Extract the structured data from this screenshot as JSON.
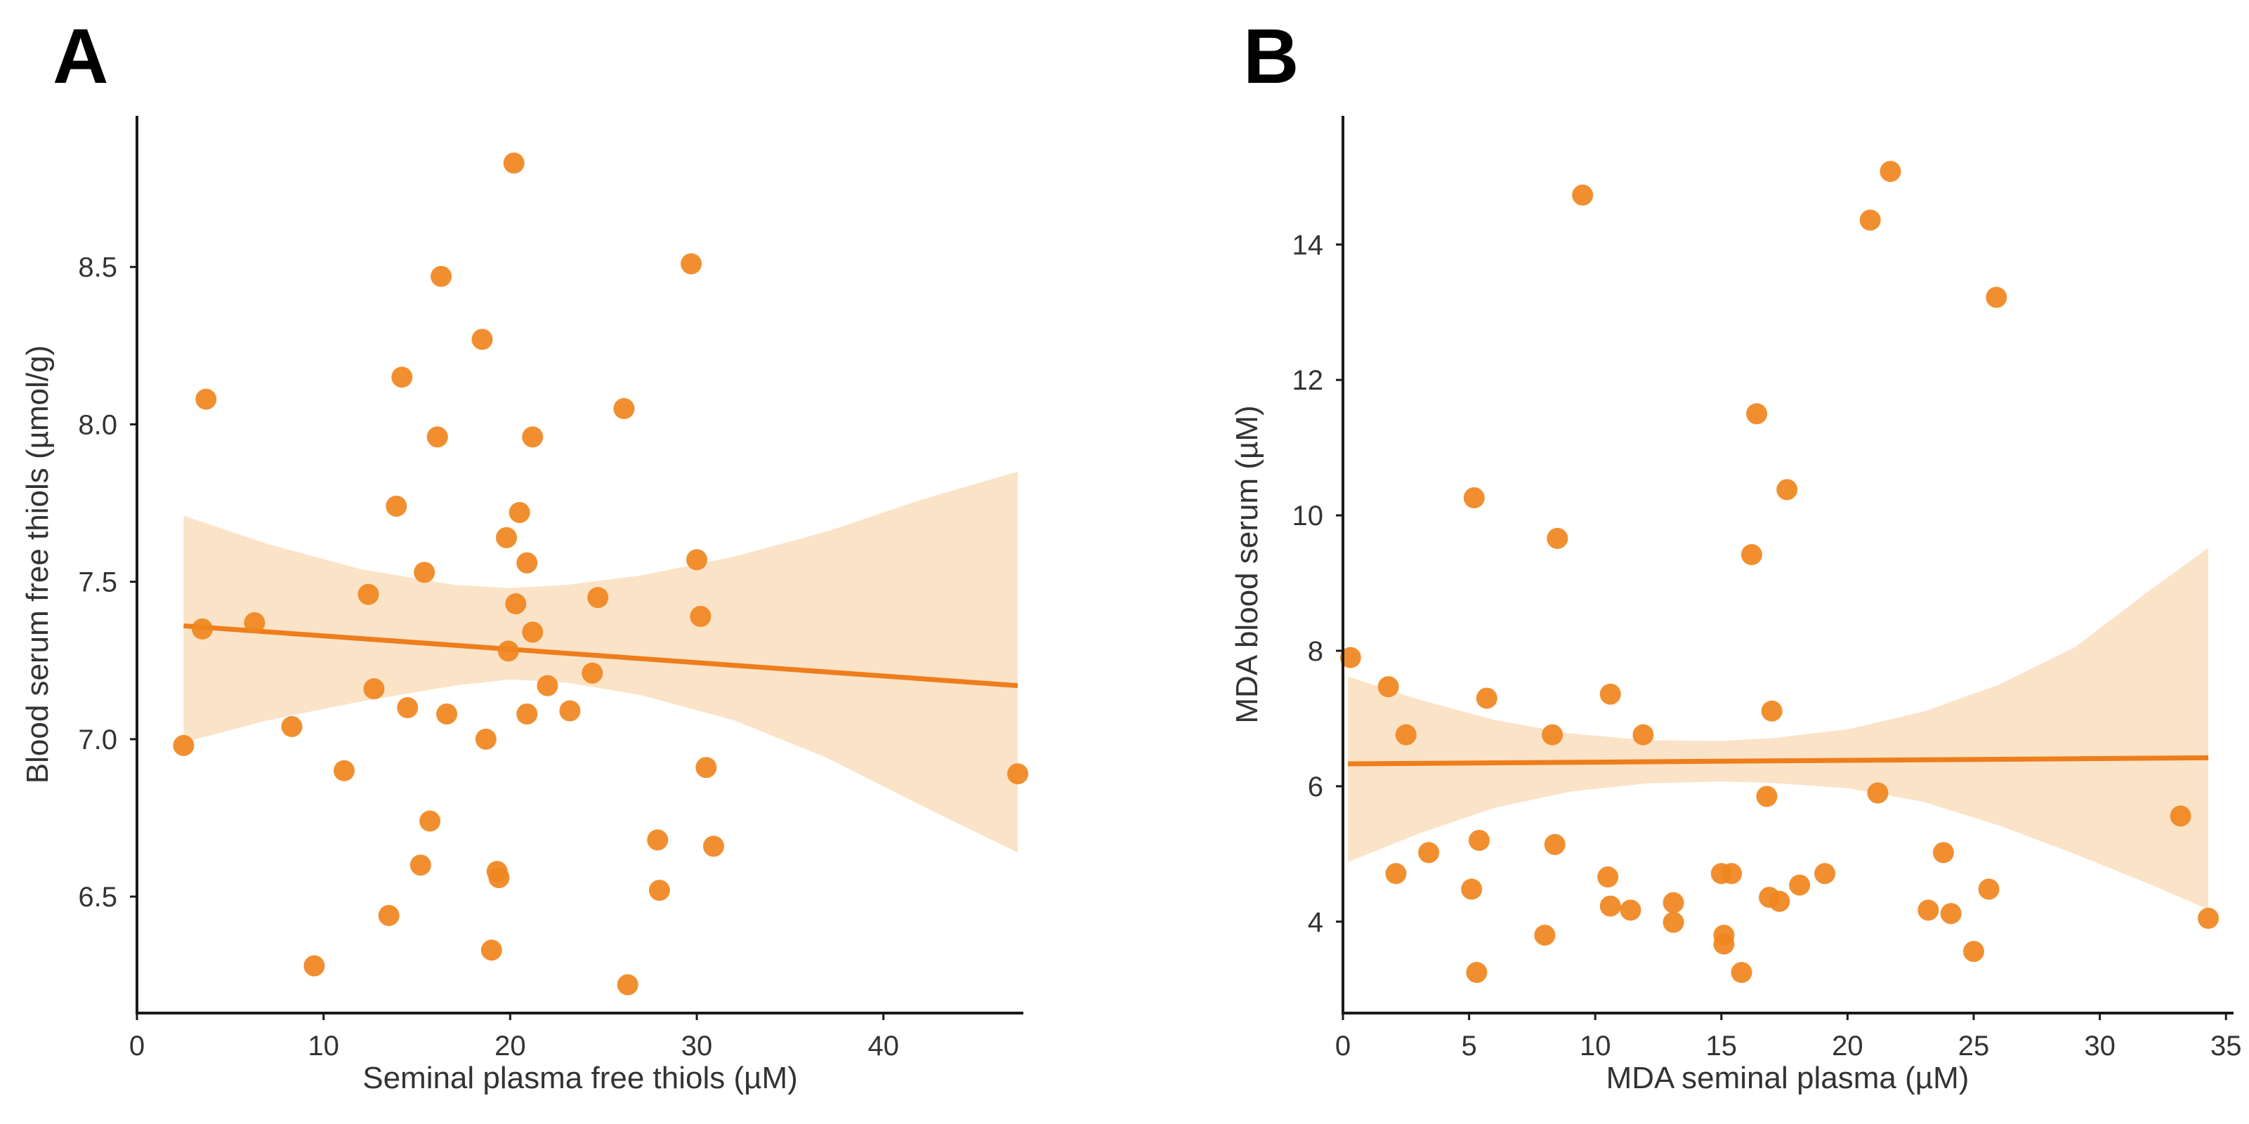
{
  "chart_data": [
    {
      "type": "scatter",
      "panel_label": "A",
      "xlabel": "Seminal plasma free thiols (µM)",
      "ylabel": "Blood serum free thiols (µmol/g)",
      "xlim": [
        0,
        47.5
      ],
      "ylim": [
        6.13,
        8.98
      ],
      "xticks": [
        0,
        10,
        20,
        30,
        40
      ],
      "yticks": [
        6.5,
        7.0,
        7.5,
        8.0,
        8.5
      ],
      "ytick_labels": [
        "6.5",
        "7.0",
        "7.5",
        "8.0",
        "8.5"
      ],
      "grid": false,
      "colors": {
        "points": "#f0861e",
        "line": "#ee7d1c",
        "band": "#fbe3c8"
      },
      "regression": {
        "x": [
          2.5,
          47.2
        ],
        "y": [
          7.36,
          7.17
        ]
      },
      "confidence_band": {
        "x": [
          2.5,
          7,
          12,
          17,
          20,
          23,
          27,
          32,
          37,
          42,
          47.2
        ],
        "lower": [
          6.99,
          7.06,
          7.12,
          7.17,
          7.19,
          7.18,
          7.14,
          7.06,
          6.94,
          6.79,
          6.64
        ],
        "upper": [
          7.71,
          7.62,
          7.54,
          7.49,
          7.48,
          7.49,
          7.52,
          7.58,
          7.66,
          7.76,
          7.85
        ]
      },
      "points": [
        {
          "x": 2.5,
          "y": 6.98
        },
        {
          "x": 3.5,
          "y": 7.35
        },
        {
          "x": 3.7,
          "y": 8.08
        },
        {
          "x": 6.3,
          "y": 7.37
        },
        {
          "x": 8.3,
          "y": 7.04
        },
        {
          "x": 9.5,
          "y": 6.28
        },
        {
          "x": 11.1,
          "y": 6.9
        },
        {
          "x": 12.4,
          "y": 7.46
        },
        {
          "x": 12.7,
          "y": 7.16
        },
        {
          "x": 13.5,
          "y": 6.44
        },
        {
          "x": 13.9,
          "y": 7.74
        },
        {
          "x": 14.2,
          "y": 8.15
        },
        {
          "x": 14.5,
          "y": 7.1
        },
        {
          "x": 15.2,
          "y": 6.6
        },
        {
          "x": 15.4,
          "y": 7.53
        },
        {
          "x": 15.7,
          "y": 6.74
        },
        {
          "x": 16.1,
          "y": 7.96
        },
        {
          "x": 16.3,
          "y": 8.47
        },
        {
          "x": 16.6,
          "y": 7.08
        },
        {
          "x": 18.5,
          "y": 8.27
        },
        {
          "x": 18.7,
          "y": 7.0
        },
        {
          "x": 19.0,
          "y": 6.33
        },
        {
          "x": 19.3,
          "y": 6.58
        },
        {
          "x": 19.4,
          "y": 6.56
        },
        {
          "x": 19.8,
          "y": 7.64
        },
        {
          "x": 19.9,
          "y": 7.28
        },
        {
          "x": 20.2,
          "y": 8.83
        },
        {
          "x": 20.3,
          "y": 7.43
        },
        {
          "x": 20.5,
          "y": 7.72
        },
        {
          "x": 20.9,
          "y": 7.56
        },
        {
          "x": 20.9,
          "y": 7.08
        },
        {
          "x": 21.2,
          "y": 7.34
        },
        {
          "x": 21.2,
          "y": 7.96
        },
        {
          "x": 22.0,
          "y": 7.17
        },
        {
          "x": 23.2,
          "y": 7.09
        },
        {
          "x": 24.4,
          "y": 7.21
        },
        {
          "x": 24.7,
          "y": 7.45
        },
        {
          "x": 26.1,
          "y": 8.05
        },
        {
          "x": 26.3,
          "y": 6.22
        },
        {
          "x": 27.9,
          "y": 6.68
        },
        {
          "x": 28.0,
          "y": 6.52
        },
        {
          "x": 29.7,
          "y": 8.51
        },
        {
          "x": 30.0,
          "y": 7.57
        },
        {
          "x": 30.2,
          "y": 7.39
        },
        {
          "x": 30.5,
          "y": 6.91
        },
        {
          "x": 30.9,
          "y": 6.66
        },
        {
          "x": 47.2,
          "y": 6.89
        }
      ]
    },
    {
      "type": "scatter",
      "panel_label": "B",
      "xlabel": "MDA seminal plasma (µM)",
      "ylabel": "MDA blood serum (µM)",
      "xlim": [
        0,
        35.3
      ],
      "ylim": [
        2.65,
        15.9
      ],
      "xticks": [
        0,
        5,
        10,
        15,
        20,
        25,
        30,
        35
      ],
      "yticks": [
        4,
        6,
        8,
        10,
        12,
        14
      ],
      "ytick_labels": [
        "4",
        "6",
        "8",
        "10",
        "12",
        "14"
      ],
      "grid": false,
      "colors": {
        "points": "#f0861e",
        "line": "#ee7d1c",
        "band": "#fbe3c8"
      },
      "regression": {
        "x": [
          0.2,
          34.3
        ],
        "y": [
          6.33,
          6.42
        ]
      },
      "confidence_band": {
        "x": [
          0.2,
          3,
          6,
          9,
          12,
          15,
          17,
          20,
          23,
          26,
          29,
          32,
          34.3
        ],
        "lower": [
          4.88,
          5.3,
          5.68,
          5.92,
          6.04,
          6.07,
          6.05,
          5.97,
          5.77,
          5.42,
          5.0,
          4.55,
          4.18
        ],
        "upper": [
          7.62,
          7.28,
          6.98,
          6.78,
          6.68,
          6.67,
          6.71,
          6.84,
          7.1,
          7.5,
          8.05,
          8.9,
          9.52
        ]
      },
      "points": [
        {
          "x": 0.3,
          "y": 7.9
        },
        {
          "x": 1.8,
          "y": 7.47
        },
        {
          "x": 2.1,
          "y": 4.71
        },
        {
          "x": 2.5,
          "y": 6.76
        },
        {
          "x": 3.4,
          "y": 5.02
        },
        {
          "x": 5.1,
          "y": 4.48
        },
        {
          "x": 5.2,
          "y": 10.26
        },
        {
          "x": 5.3,
          "y": 3.25
        },
        {
          "x": 5.4,
          "y": 5.2
        },
        {
          "x": 5.7,
          "y": 7.3
        },
        {
          "x": 8.0,
          "y": 3.8
        },
        {
          "x": 8.3,
          "y": 6.76
        },
        {
          "x": 8.4,
          "y": 5.14
        },
        {
          "x": 8.5,
          "y": 9.66
        },
        {
          "x": 9.5,
          "y": 14.73
        },
        {
          "x": 10.5,
          "y": 4.66
        },
        {
          "x": 10.6,
          "y": 7.36
        },
        {
          "x": 10.6,
          "y": 4.23
        },
        {
          "x": 11.4,
          "y": 4.17
        },
        {
          "x": 11.9,
          "y": 6.76
        },
        {
          "x": 13.1,
          "y": 4.28
        },
        {
          "x": 13.1,
          "y": 3.99
        },
        {
          "x": 15.0,
          "y": 4.71
        },
        {
          "x": 15.1,
          "y": 3.8
        },
        {
          "x": 15.1,
          "y": 3.67
        },
        {
          "x": 15.4,
          "y": 4.71
        },
        {
          "x": 15.8,
          "y": 3.25
        },
        {
          "x": 16.2,
          "y": 9.42
        },
        {
          "x": 16.4,
          "y": 11.5
        },
        {
          "x": 16.8,
          "y": 5.85
        },
        {
          "x": 16.9,
          "y": 4.36
        },
        {
          "x": 17.0,
          "y": 7.11
        },
        {
          "x": 17.3,
          "y": 4.3
        },
        {
          "x": 17.6,
          "y": 10.38
        },
        {
          "x": 18.1,
          "y": 4.54
        },
        {
          "x": 19.1,
          "y": 4.71
        },
        {
          "x": 20.9,
          "y": 14.36
        },
        {
          "x": 21.2,
          "y": 5.9
        },
        {
          "x": 21.7,
          "y": 15.08
        },
        {
          "x": 23.2,
          "y": 4.17
        },
        {
          "x": 23.8,
          "y": 5.02
        },
        {
          "x": 24.1,
          "y": 4.12
        },
        {
          "x": 25.0,
          "y": 3.56
        },
        {
          "x": 25.6,
          "y": 4.48
        },
        {
          "x": 25.9,
          "y": 13.22
        },
        {
          "x": 33.2,
          "y": 5.56
        },
        {
          "x": 34.3,
          "y": 4.05
        }
      ]
    }
  ]
}
